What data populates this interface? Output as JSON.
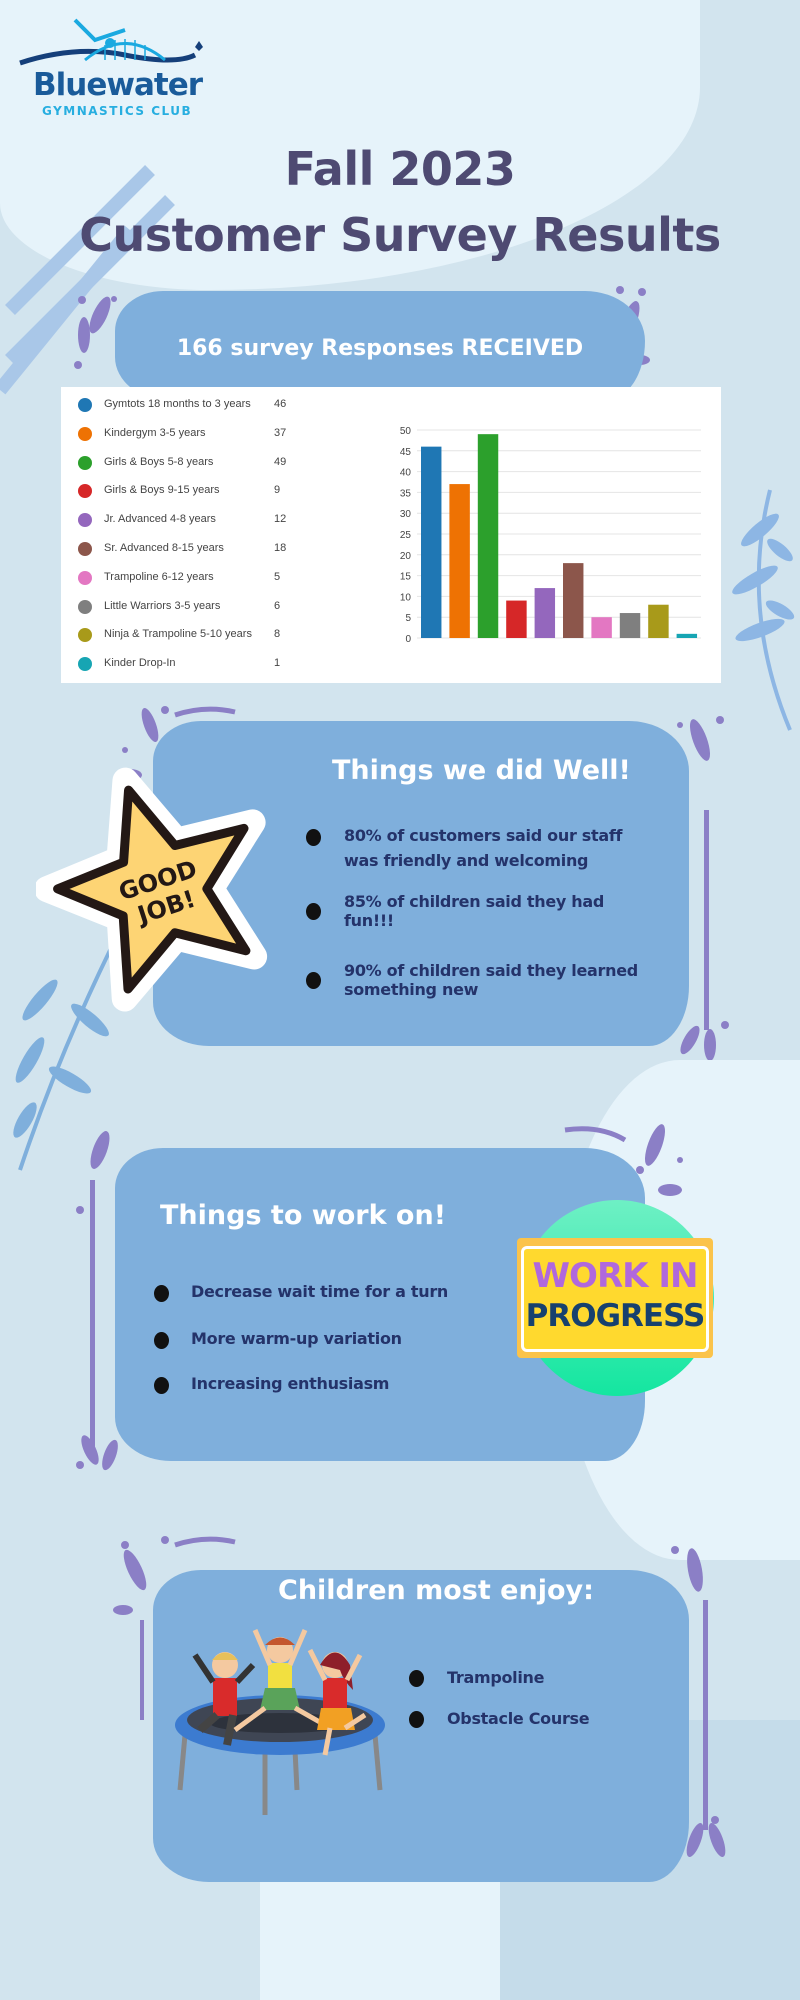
{
  "logo": {
    "name": "Bluewater",
    "subtitle": "GYMNASTICS CLUB"
  },
  "title": {
    "line1": "Fall 2023",
    "line2": "Customer Survey Results"
  },
  "responses": {
    "heading": "166 survey Responses RECEIVED"
  },
  "chart_data": {
    "type": "bar",
    "categories": [
      "Gymtots 18 months to 3 years",
      "Kindergym 3-5 years",
      "Girls & Boys 5-8 years",
      "Girls & Boys 9-15 years",
      "Jr. Advanced 4-8 years",
      "Sr. Advanced 8-15 years",
      "Trampoline 6-12 years",
      "Little Warriors 3-5 years",
      "Ninja & Trampoline 5-10 years",
      "Kinder Drop-In"
    ],
    "values": [
      46,
      37,
      49,
      9,
      12,
      18,
      5,
      6,
      8,
      1
    ],
    "colors": [
      "#1f77b4",
      "#ee7203",
      "#2ca02c",
      "#d62728",
      "#9467bd",
      "#8c564b",
      "#e377c2",
      "#7f7f7f",
      "#a89a1a",
      "#17a5b3"
    ],
    "yticks": [
      "0",
      "5",
      "10",
      "15",
      "20",
      "25",
      "30",
      "35",
      "40",
      "45",
      "50"
    ],
    "ylim": [
      0,
      50
    ],
    "grid": true,
    "legend": "left"
  },
  "well": {
    "heading": "Things we did Well!",
    "badge": "GOOD JOB!",
    "items": [
      "80% of customers said our staff was friendly and welcoming",
      "85% of children said they had fun!!!",
      "90% of children said they learned something new"
    ]
  },
  "work": {
    "heading": "Things to work on!",
    "badge_line1": "WORK IN",
    "badge_line2": "PROGRESS",
    "items": [
      "Decrease wait time for a turn",
      "More warm-up variation",
      "Increasing enthusiasm"
    ]
  },
  "enjoy": {
    "heading": "Children most enjoy:",
    "items": [
      "Trampoline",
      "Obstacle Course"
    ]
  },
  "colors": {
    "background": "#d2e4ee",
    "box": "#7fafdc",
    "title": "#4e4a72",
    "decor": "#8b7fc6",
    "text": "#24336a"
  }
}
